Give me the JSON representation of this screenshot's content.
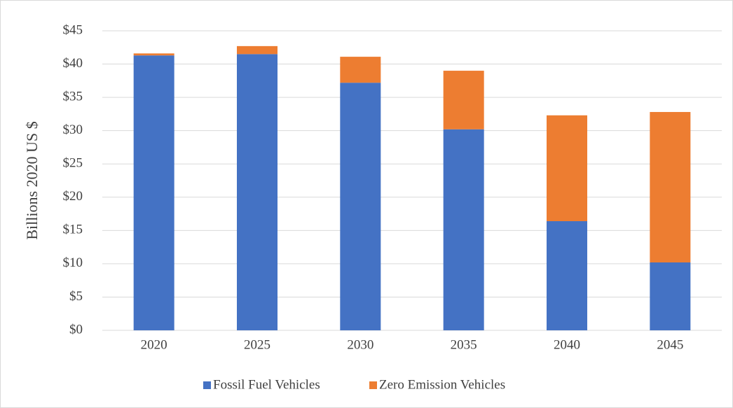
{
  "chart_data": {
    "type": "stacked_bar",
    "y_label": "Billions 2020 US $",
    "categories": [
      "2020",
      "2025",
      "2030",
      "2035",
      "2040",
      "2045"
    ],
    "series": [
      {
        "name": "Fossil Fuel Vehicles",
        "color": "#4472c4",
        "values": [
          41.3,
          41.5,
          37.2,
          30.2,
          16.4,
          10.2
        ]
      },
      {
        "name": "Zero Emission Vehicles",
        "color": "#ed7d31",
        "values": [
          0.3,
          1.2,
          3.9,
          8.8,
          15.9,
          22.6
        ]
      }
    ],
    "ylim": [
      0,
      45
    ],
    "yticks": [
      {
        "value": 0,
        "label": "$0"
      },
      {
        "value": 5,
        "label": "$5"
      },
      {
        "value": 10,
        "label": "$10"
      },
      {
        "value": 15,
        "label": "$15"
      },
      {
        "value": 20,
        "label": "$20"
      },
      {
        "value": 25,
        "label": "$25"
      },
      {
        "value": 30,
        "label": "$30"
      },
      {
        "value": 35,
        "label": "$35"
      },
      {
        "value": 40,
        "label": "$40"
      },
      {
        "value": 45,
        "label": "$45"
      }
    ],
    "grid": true,
    "legend": "bottom"
  }
}
